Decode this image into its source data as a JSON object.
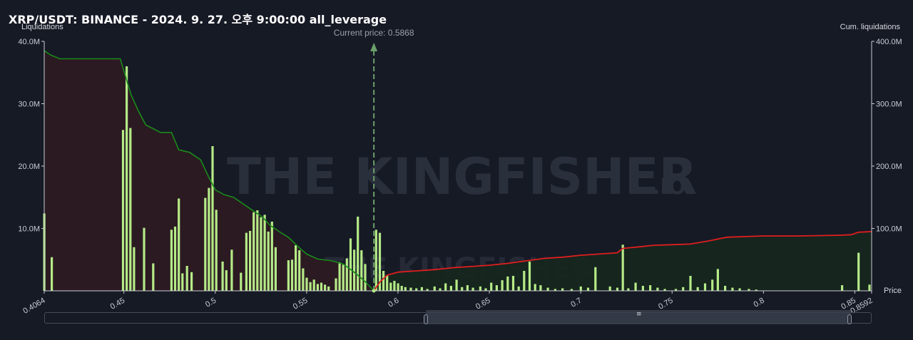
{
  "header": {
    "title": "XRP/USDT: BINANCE - 2024. 9. 27. 오후 9:00:00 all_leverage"
  },
  "axes": {
    "left_title": "Liquidations",
    "right_title": "Cum. liquidations",
    "x_title": "Price",
    "left_ticks": [
      "40.0M",
      "30.0M",
      "20.0M",
      "10.0M"
    ],
    "right_ticks": [
      "400.0M",
      "300.0M",
      "200.0M",
      "100.0M"
    ],
    "x_ticks": [
      "0.4064",
      "0.45",
      "0.5",
      "0.55",
      "0.6",
      "0.65",
      "0.7",
      "0.75",
      "0.8",
      "0.85",
      "0.8592"
    ]
  },
  "current_price": {
    "label": "Current price: 0.5868",
    "value": 0.5868
  },
  "watermark": {
    "brand": "THE KINGFISHER",
    "suffix": ".IO"
  },
  "colors": {
    "background": "#161a25",
    "bar": "#b5ea87",
    "short_cum_line": "#1a8a1a",
    "long_cum_line": "#e01e1e",
    "short_fill": "#2c1a22",
    "long_fill": "#16261e",
    "current_price_line": "#6aa06a"
  },
  "chart_data": {
    "type": "bar",
    "title": "XRP/USDT: BINANCE - 2024. 9. 27. 오후 9:00:00 all_leverage",
    "xlabel": "Price",
    "ylabel": "Liquidations",
    "y2label": "Cum. liquidations",
    "xlim": [
      0.4064,
      0.8592
    ],
    "ylim": [
      0,
      40000000
    ],
    "y2lim": [
      0,
      400000000
    ],
    "grid": false,
    "bars": [
      [
        0.4064,
        12.4
      ],
      [
        0.4105,
        5.4
      ],
      [
        0.4495,
        25.8
      ],
      [
        0.4515,
        36.0
      ],
      [
        0.4535,
        26.1
      ],
      [
        0.4555,
        7.0
      ],
      [
        0.461,
        10.1
      ],
      [
        0.466,
        4.4
      ],
      [
        0.476,
        9.8
      ],
      [
        0.478,
        10.3
      ],
      [
        0.48,
        14.8
      ],
      [
        0.482,
        2.8
      ],
      [
        0.4845,
        4.0
      ],
      [
        0.487,
        3.0
      ],
      [
        0.4945,
        14.9
      ],
      [
        0.4965,
        16.5
      ],
      [
        0.4985,
        23.2
      ],
      [
        0.5005,
        13.0
      ],
      [
        0.504,
        4.7
      ],
      [
        0.506,
        3.3
      ],
      [
        0.509,
        6.6
      ],
      [
        0.514,
        2.9
      ],
      [
        0.517,
        9.3
      ],
      [
        0.519,
        9.6
      ],
      [
        0.521,
        12.6
      ],
      [
        0.523,
        12.9
      ],
      [
        0.525,
        11.8
      ],
      [
        0.527,
        12.2
      ],
      [
        0.529,
        9.5
      ],
      [
        0.531,
        11.1
      ],
      [
        0.533,
        7.0
      ],
      [
        0.54,
        4.9
      ],
      [
        0.542,
        5.0
      ],
      [
        0.544,
        7.3
      ],
      [
        0.546,
        6.5
      ],
      [
        0.548,
        3.6
      ],
      [
        0.55,
        2.1
      ],
      [
        0.552,
        1.4
      ],
      [
        0.554,
        1.8
      ],
      [
        0.556,
        1.1
      ],
      [
        0.558,
        1.3
      ],
      [
        0.56,
        1.0
      ],
      [
        0.562,
        0.7
      ],
      [
        0.566,
        2.0
      ],
      [
        0.568,
        4.6
      ],
      [
        0.57,
        4.2
      ],
      [
        0.572,
        5.2
      ],
      [
        0.574,
        8.4
      ],
      [
        0.576,
        6.6
      ],
      [
        0.578,
        11.9
      ],
      [
        0.58,
        6.5
      ],
      [
        0.582,
        4.3
      ],
      [
        0.588,
        9.8
      ],
      [
        0.59,
        9.3
      ],
      [
        0.592,
        3.2
      ],
      [
        0.594,
        2.5
      ],
      [
        0.596,
        1.3
      ],
      [
        0.598,
        1.6
      ],
      [
        0.6,
        1.2
      ],
      [
        0.602,
        0.8
      ],
      [
        0.604,
        0.6
      ],
      [
        0.607,
        0.5
      ],
      [
        0.61,
        0.4
      ],
      [
        0.613,
        0.6
      ],
      [
        0.616,
        0.3
      ],
      [
        0.62,
        0.7
      ],
      [
        0.623,
        0.4
      ],
      [
        0.626,
        1.2
      ],
      [
        0.629,
        0.8
      ],
      [
        0.632,
        1.8
      ],
      [
        0.635,
        0.6
      ],
      [
        0.638,
        0.9
      ],
      [
        0.641,
        0.5
      ],
      [
        0.645,
        0.7
      ],
      [
        0.648,
        0.4
      ],
      [
        0.651,
        1.3
      ],
      [
        0.654,
        0.9
      ],
      [
        0.657,
        1.7
      ],
      [
        0.66,
        2.3
      ],
      [
        0.663,
        2.4
      ],
      [
        0.666,
        0.7
      ],
      [
        0.669,
        3.2
      ],
      [
        0.672,
        4.7
      ],
      [
        0.675,
        1.1
      ],
      [
        0.678,
        0.9
      ],
      [
        0.682,
        0.5
      ],
      [
        0.686,
        0.3
      ],
      [
        0.69,
        0.4
      ],
      [
        0.695,
        0.3
      ],
      [
        0.7,
        0.7
      ],
      [
        0.704,
        0.5
      ],
      [
        0.708,
        3.8
      ],
      [
        0.716,
        0.7
      ],
      [
        0.72,
        0.5
      ],
      [
        0.723,
        7.4
      ],
      [
        0.726,
        0.4
      ],
      [
        0.73,
        1.3
      ],
      [
        0.734,
        0.8
      ],
      [
        0.738,
        0.9
      ],
      [
        0.742,
        0.5
      ],
      [
        0.746,
        0.3
      ],
      [
        0.752,
        0.3
      ],
      [
        0.756,
        0.6
      ],
      [
        0.76,
        2.4
      ],
      [
        0.764,
        0.6
      ],
      [
        0.768,
        1.2
      ],
      [
        0.772,
        1.8
      ],
      [
        0.775,
        3.5
      ],
      [
        0.779,
        0.8
      ],
      [
        0.783,
        0.5
      ],
      [
        0.787,
        0.4
      ],
      [
        0.792,
        0.3
      ],
      [
        0.796,
        0.2
      ],
      [
        0.843,
        0.9
      ],
      [
        0.852,
        6.1
      ],
      [
        0.858,
        1.0
      ]
    ],
    "bar_units": "millions",
    "short_cumulative": [
      [
        0.4064,
        38.5
      ],
      [
        0.41,
        37.8
      ],
      [
        0.415,
        37.2
      ],
      [
        0.42,
        37.2
      ],
      [
        0.43,
        37.2
      ],
      [
        0.44,
        37.2
      ],
      [
        0.448,
        37.2
      ],
      [
        0.454,
        31.4
      ],
      [
        0.458,
        28.8
      ],
      [
        0.462,
        26.6
      ],
      [
        0.466,
        26.0
      ],
      [
        0.47,
        25.4
      ],
      [
        0.476,
        25.4
      ],
      [
        0.48,
        22.6
      ],
      [
        0.486,
        22.2
      ],
      [
        0.492,
        21.0
      ],
      [
        0.496,
        18.5
      ],
      [
        0.5,
        16.2
      ],
      [
        0.505,
        15.4
      ],
      [
        0.51,
        15.0
      ],
      [
        0.52,
        13.0
      ],
      [
        0.526,
        11.8
      ],
      [
        0.53,
        10.5
      ],
      [
        0.536,
        9.3
      ],
      [
        0.54,
        8.6
      ],
      [
        0.546,
        6.9
      ],
      [
        0.55,
        5.9
      ],
      [
        0.556,
        5.1
      ],
      [
        0.564,
        4.8
      ],
      [
        0.57,
        4.3
      ],
      [
        0.576,
        3.0
      ],
      [
        0.582,
        1.5
      ],
      [
        0.5868,
        0.0
      ]
    ],
    "long_cumulative": [
      [
        0.5868,
        0.0
      ],
      [
        0.59,
        1.4
      ],
      [
        0.594,
        2.5
      ],
      [
        0.6,
        3.0
      ],
      [
        0.61,
        3.2
      ],
      [
        0.62,
        3.4
      ],
      [
        0.63,
        3.7
      ],
      [
        0.64,
        3.9
      ],
      [
        0.65,
        4.1
      ],
      [
        0.66,
        4.4
      ],
      [
        0.67,
        4.8
      ],
      [
        0.68,
        5.2
      ],
      [
        0.69,
        5.4
      ],
      [
        0.7,
        5.7
      ],
      [
        0.71,
        5.9
      ],
      [
        0.72,
        6.1
      ],
      [
        0.723,
        6.8
      ],
      [
        0.73,
        7.0
      ],
      [
        0.74,
        7.3
      ],
      [
        0.75,
        7.4
      ],
      [
        0.76,
        7.5
      ],
      [
        0.77,
        8.0
      ],
      [
        0.78,
        8.6
      ],
      [
        0.79,
        8.7
      ],
      [
        0.8,
        8.8
      ],
      [
        0.82,
        8.8
      ],
      [
        0.84,
        8.9
      ],
      [
        0.848,
        9.0
      ],
      [
        0.852,
        9.4
      ],
      [
        0.8592,
        9.5
      ]
    ],
    "cumulative_units": "tens of millions (scaled to left axis; right axis x10)"
  }
}
